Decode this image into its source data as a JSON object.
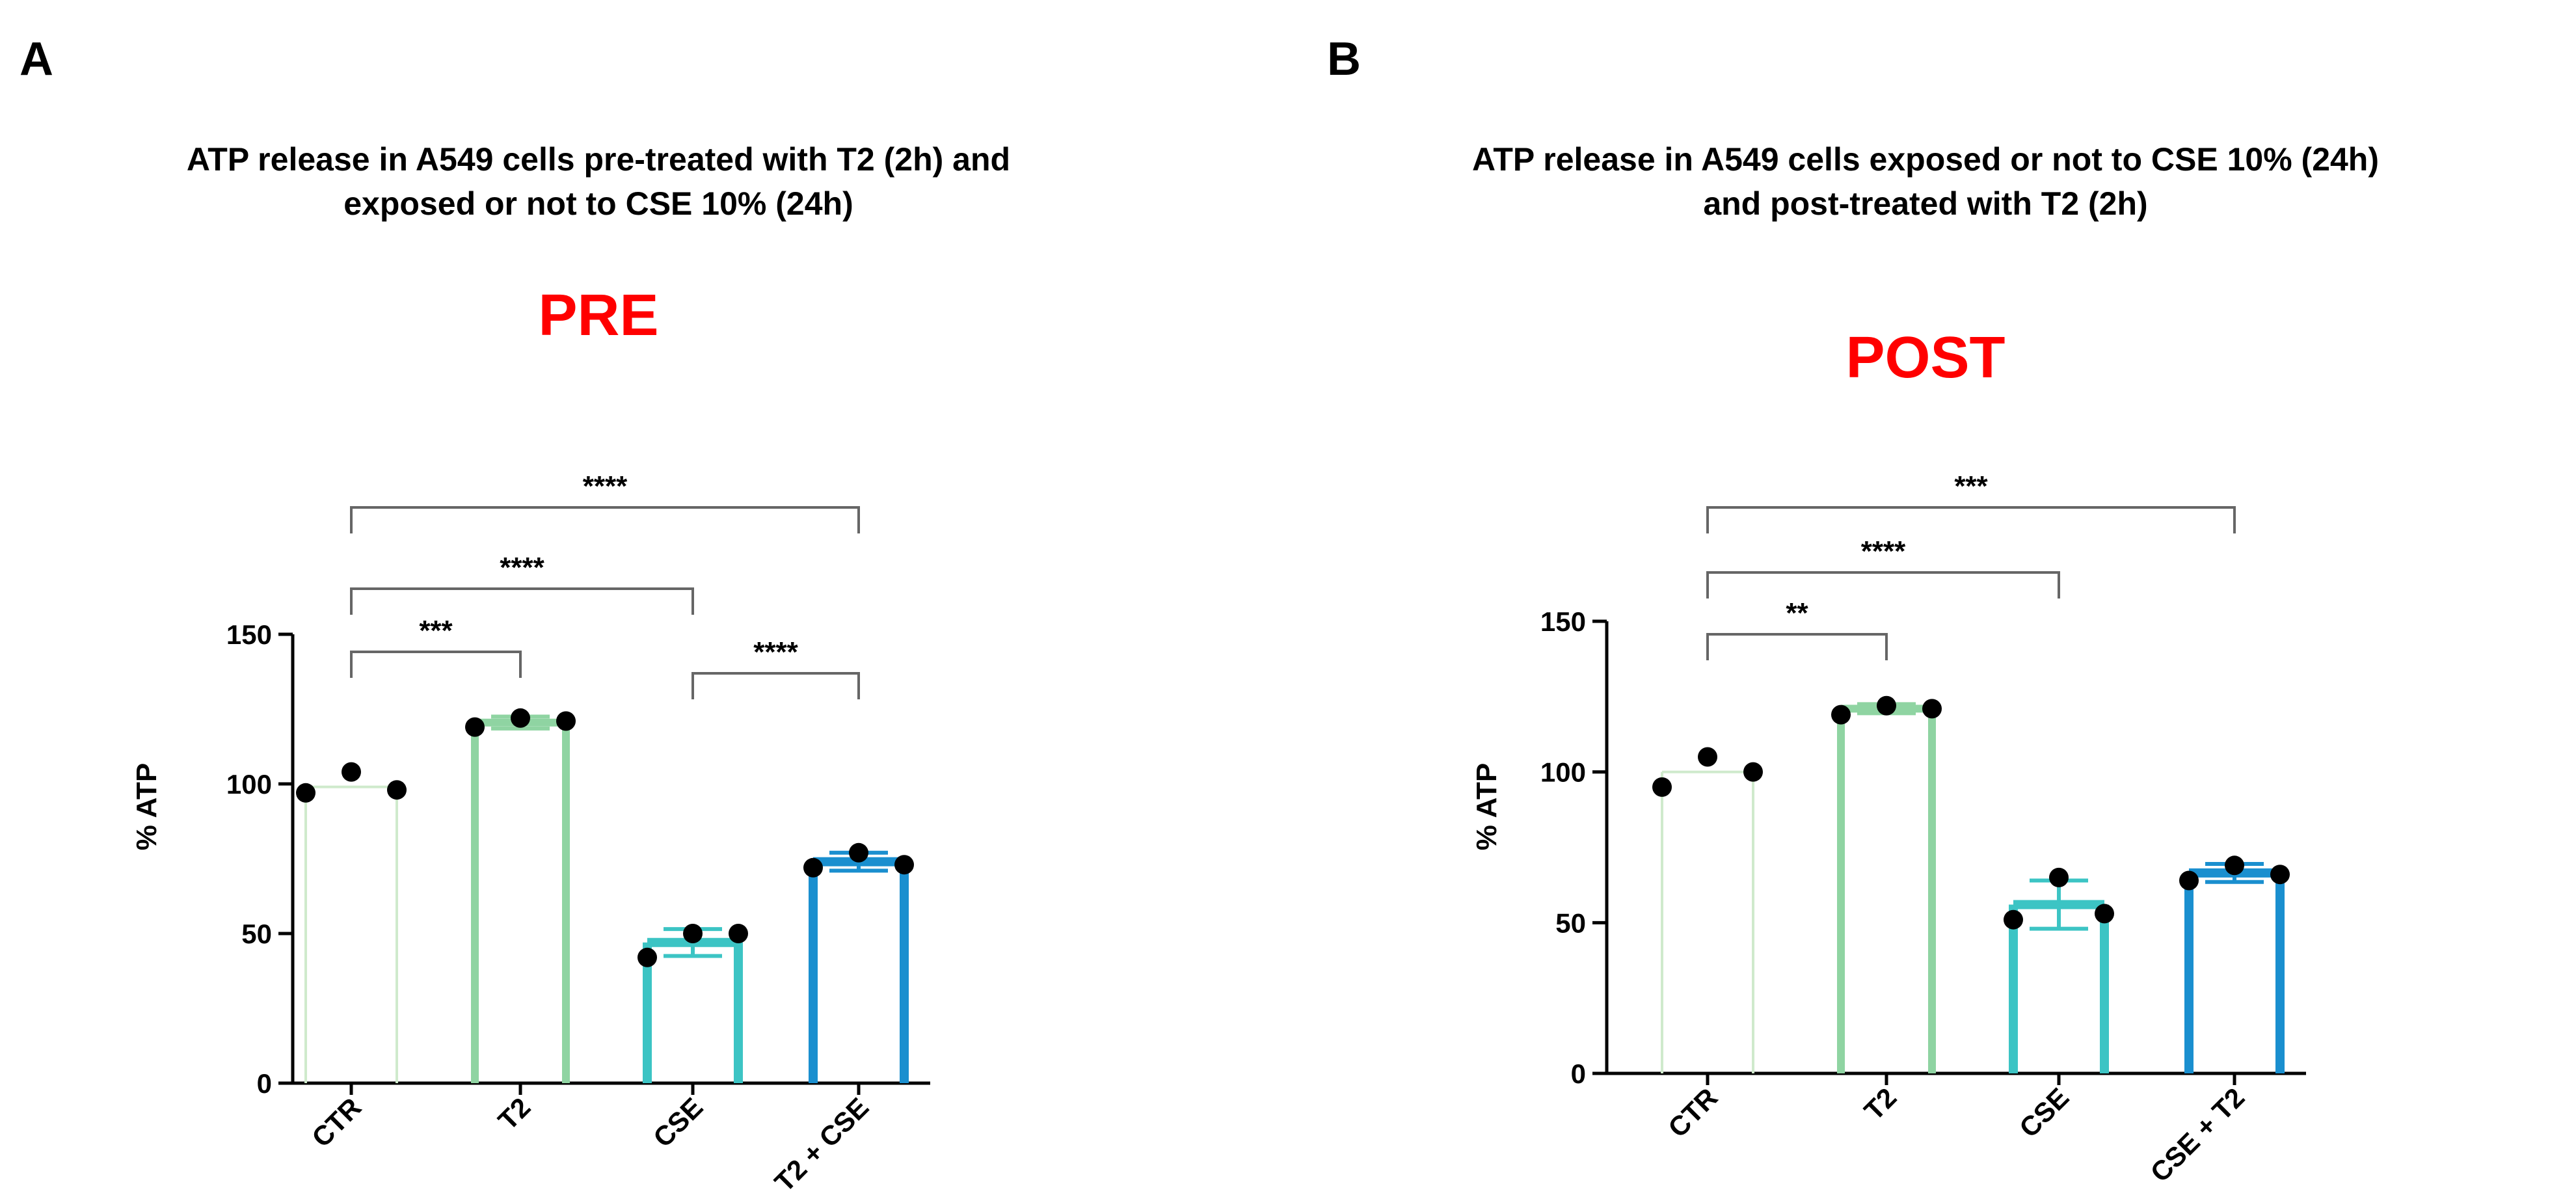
{
  "figure": {
    "colors": {
      "axis": "#000000",
      "bracket": "#666666",
      "subtitle": "#ff0000",
      "dot": "#000000",
      "CTR": "#cfeacc",
      "T2": "#8fd4a2",
      "CSE": "#3cc4c4",
      "combo": "#1a8fcf"
    }
  },
  "chart_data": [
    {
      "panel_label": "A",
      "type": "bar",
      "title_lines": [
        "ATP release in A549 cells pre-treated with T2 (2h) and",
        "exposed or not to CSE 10% (24h)"
      ],
      "subtitle": "PRE",
      "ylabel": "% ATP",
      "xlabel": "",
      "ylim": [
        0,
        150
      ],
      "yticks": [
        0,
        50,
        100,
        150
      ],
      "grid": false,
      "categories": [
        "CTR",
        "T2",
        "CSE",
        "T2 + CSE"
      ],
      "means": [
        99,
        120.5,
        47,
        74
      ],
      "errors": [
        0,
        2,
        4.5,
        3
      ],
      "points": [
        [
          97,
          104,
          98
        ],
        [
          119,
          122,
          121
        ],
        [
          42,
          50,
          50
        ],
        [
          72,
          77,
          73
        ]
      ],
      "comparisons": [
        {
          "from": 0,
          "to": 1,
          "label": "***"
        },
        {
          "from": 2,
          "to": 3,
          "label": "****"
        },
        {
          "from": 0,
          "to": 2,
          "label": "****"
        },
        {
          "from": 0,
          "to": 3,
          "label": "****"
        }
      ]
    },
    {
      "panel_label": "B",
      "type": "bar",
      "title_lines": [
        "ATP release in A549 cells exposed or not to CSE 10% (24h)",
        "and post-treated with T2 (2h)"
      ],
      "subtitle": "POST",
      "ylabel": "% ATP",
      "xlabel": "",
      "ylim": [
        0,
        150
      ],
      "yticks": [
        0,
        50,
        100,
        150
      ],
      "grid": false,
      "categories": [
        "CTR",
        "T2",
        "CSE",
        "CSE + T2"
      ],
      "means": [
        100,
        121,
        56,
        66.5
      ],
      "errors": [
        0,
        1.5,
        8,
        3
      ],
      "points": [
        [
          95,
          105,
          100
        ],
        [
          119,
          122,
          121
        ],
        [
          51,
          65,
          53
        ],
        [
          64,
          69,
          66
        ]
      ],
      "comparisons": [
        {
          "from": 0,
          "to": 1,
          "label": "**"
        },
        {
          "from": 0,
          "to": 2,
          "label": "****"
        },
        {
          "from": 0,
          "to": 3,
          "label": "***"
        }
      ]
    }
  ]
}
